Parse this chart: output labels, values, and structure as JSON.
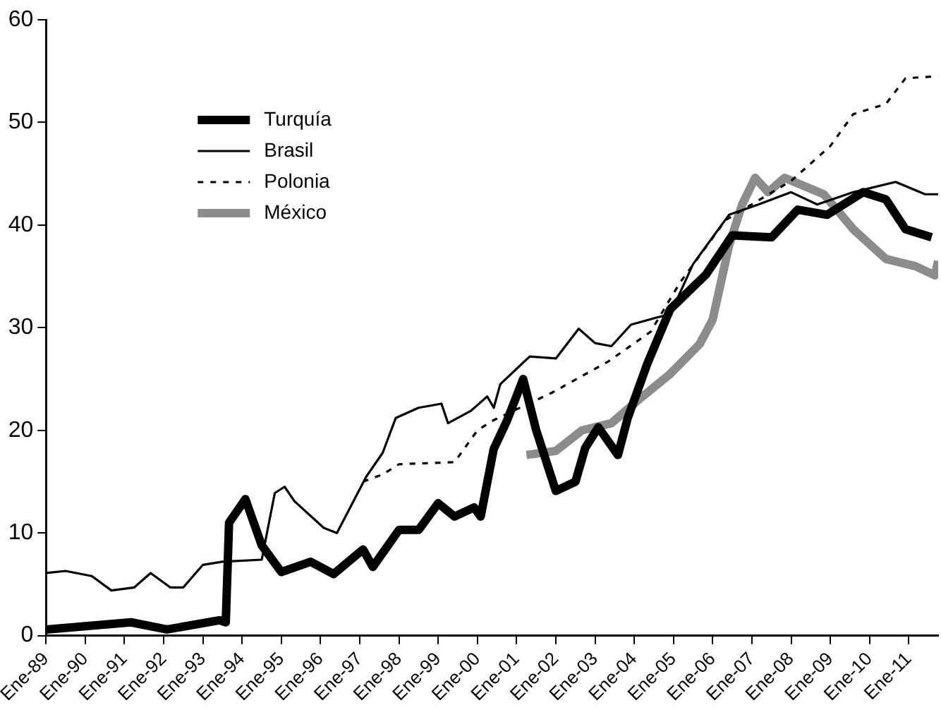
{
  "chart_data": {
    "type": "line",
    "legend": "top left",
    "grid": false,
    "marker": "none",
    "xlim": [
      "1989-01",
      "2011-10"
    ],
    "xticks": [
      {
        "value": "1989-01",
        "label": "Ene-89"
      },
      {
        "value": "1990-01",
        "label": "Ene-90"
      },
      {
        "value": "1991-01",
        "label": "Ene-91"
      },
      {
        "value": "1992-01",
        "label": "Ene-92"
      },
      {
        "value": "1993-01",
        "label": "Ene-93"
      },
      {
        "value": "1994-01",
        "label": "Ene-94"
      },
      {
        "value": "1995-01",
        "label": "Ene-95"
      },
      {
        "value": "1996-01",
        "label": "Ene-96"
      },
      {
        "value": "1997-01",
        "label": "Ene-97"
      },
      {
        "value": "1998-01",
        "label": "Ene-98"
      },
      {
        "value": "1999-01",
        "label": "Ene-99"
      },
      {
        "value": "2000-01",
        "label": "Ene-00"
      },
      {
        "value": "2001-01",
        "label": "Ene-01"
      },
      {
        "value": "2002-01",
        "label": "Ene-02"
      },
      {
        "value": "2003-01",
        "label": "Ene-03"
      },
      {
        "value": "2004-01",
        "label": "Ene-04"
      },
      {
        "value": "2005-01",
        "label": "Ene-05"
      },
      {
        "value": "2006-01",
        "label": "Ene-06"
      },
      {
        "value": "2007-01",
        "label": "Ene-07"
      },
      {
        "value": "2008-01",
        "label": "Ene-08"
      },
      {
        "value": "2009-01",
        "label": "Ene-09"
      },
      {
        "value": "2010-01",
        "label": "Ene-10"
      },
      {
        "value": "2011-01",
        "label": "Ene-11"
      }
    ],
    "ylim": [
      0,
      60
    ],
    "yticks": [
      0,
      10,
      20,
      30,
      40,
      50,
      60
    ],
    "series": [
      {
        "name": "Turquía",
        "color": "#000000",
        "line_style": "solid",
        "x": [
          "1989-01",
          "1991-03",
          "1992-02",
          "1993-06",
          "1993-08",
          "1993-09",
          "1994-02",
          "1994-07",
          "1995-01",
          "1995-10",
          "1996-05",
          "1997-02",
          "1997-05",
          "1998-01",
          "1998-07",
          "1999-01",
          "1999-06",
          "1999-12",
          "2000-02",
          "2000-06",
          "2000-10",
          "2001-03",
          "2001-07",
          "2002-01",
          "2002-07",
          "2002-10",
          "2003-02",
          "2003-08",
          "2003-11",
          "2004-05",
          "2004-12",
          "2005-11",
          "2006-07",
          "2007-07",
          "2008-03",
          "2008-12",
          "2009-11",
          "2010-06",
          "2010-12",
          "2011-08"
        ],
        "values": [
          0.6,
          1.3,
          0.6,
          1.5,
          1.3,
          11,
          13.3,
          8.8,
          6.2,
          7.2,
          6,
          8.4,
          6.7,
          10.3,
          10.3,
          12.9,
          11.6,
          12.5,
          11.6,
          18.2,
          20.9,
          25,
          20,
          14.1,
          15,
          18.3,
          20.3,
          17.6,
          21.2,
          26.5,
          31.8,
          35.2,
          39,
          38.8,
          41.5,
          41,
          43.2,
          42.5,
          39.6,
          38.8
        ]
      },
      {
        "name": "Brasil",
        "color": "#000000",
        "line_style": "solid",
        "x": [
          "1989-01",
          "1989-07",
          "1990-03",
          "1990-09",
          "1991-04",
          "1991-09",
          "1992-03",
          "1992-07",
          "1993-01",
          "1993-07",
          "1994-07",
          "1994-11",
          "1995-02",
          "1995-05",
          "1996-02",
          "1996-06",
          "1997-03",
          "1997-08",
          "1997-12",
          "1998-07",
          "1999-02",
          "1999-04",
          "1999-11",
          "2000-04",
          "2000-06",
          "2000-08",
          "2001-05",
          "2002-01",
          "2002-08",
          "2003-01",
          "2003-06",
          "2003-12",
          "2004-08",
          "2004-12",
          "2005-07",
          "2006-06",
          "2007-03",
          "2008-01",
          "2008-09",
          "2009-08",
          "2010-09",
          "2011-06",
          "2011-10"
        ],
        "values": [
          6.1,
          6.3,
          5.8,
          4.4,
          4.7,
          6.1,
          4.7,
          4.7,
          6.9,
          7.2,
          7.4,
          13.9,
          14.5,
          13.1,
          10.5,
          10,
          15.5,
          17.8,
          21.2,
          22.2,
          22.6,
          20.7,
          21.9,
          23.3,
          22.2,
          24.5,
          27.2,
          27,
          29.9,
          28.5,
          28.2,
          30.3,
          31,
          31.3,
          36.2,
          41,
          42,
          43.2,
          42,
          43.2,
          44.2,
          43,
          43
        ]
      },
      {
        "name": "Polonia",
        "color": "#000000",
        "line_style": "dashed",
        "x": [
          "1997-02",
          "1997-08",
          "1998-01",
          "1999-06",
          "2000-01",
          "2000-06",
          "2000-08",
          "2001-12",
          "2003-05",
          "2004-06",
          "2005-03",
          "2006-05",
          "2008-01",
          "2009-01",
          "2009-08",
          "2010-06",
          "2010-12",
          "2011-10"
        ],
        "values": [
          15,
          15.7,
          16.7,
          16.9,
          20,
          21,
          21.3,
          23.7,
          26.7,
          29.6,
          34.4,
          40.5,
          44.3,
          47.7,
          50.8,
          51.8,
          54.3,
          54.5
        ]
      },
      {
        "name": "México",
        "color": "#8c8c8c",
        "line_style": "solid",
        "x": [
          "2001-04",
          "2002-01",
          "2002-09",
          "2003-06",
          "2004-02",
          "2004-12",
          "2005-09",
          "2006-01",
          "2006-06",
          "2006-10",
          "2007-02",
          "2007-06",
          "2007-11",
          "2008-11",
          "2009-08",
          "2010-06",
          "2011-03",
          "2011-09",
          "2011-10"
        ],
        "values": [
          17.6,
          18,
          20,
          20.7,
          22.9,
          25.5,
          28.4,
          30.8,
          38,
          42,
          44.6,
          43.2,
          44.6,
          43,
          39.6,
          36.7,
          36,
          35.1,
          36.5
        ]
      }
    ]
  }
}
